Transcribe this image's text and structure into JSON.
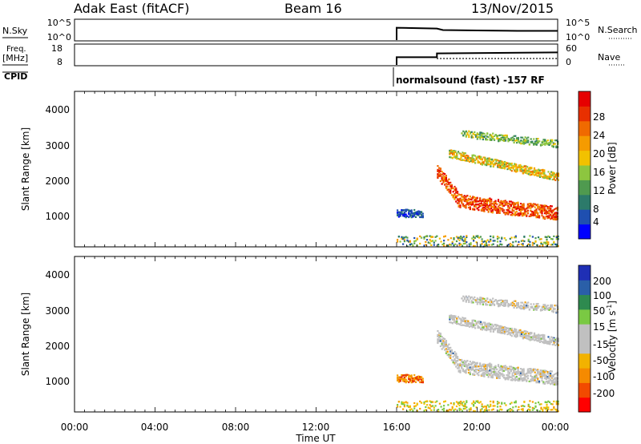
{
  "header": {
    "station": "Adak East (fitACF)",
    "beam": "Beam 16",
    "date": "13/Nov/2015"
  },
  "params": {
    "nsky_label": "N.Sky",
    "nsearch_label": "N.Search",
    "nsky_ticks": [
      "10^5",
      "10^0"
    ],
    "nsearch_ticks": [
      "10^5",
      "10^0"
    ],
    "freq_label_1": "Freq.",
    "freq_label_2": "[MHz]",
    "freq_ticks": [
      "18",
      "8"
    ],
    "nave_label": "Nave",
    "nave_ticks": [
      "60",
      "0"
    ],
    "cpid_label": "CPID",
    "cpid_text": "normalsound (fast) -157 RF"
  },
  "colors": {
    "power_scale": [
      "#0000ff",
      "#1f4fb0",
      "#2c7a6a",
      "#4f9a4f",
      "#8dc63f",
      "#f2c100",
      "#f59b00",
      "#f06a00",
      "#e83000",
      "#e60000"
    ],
    "velocity_scale": [
      "#ff0000",
      "#f24a00",
      "#f58a00",
      "#f2b200",
      "#c0c0c0",
      "#c0c0c0",
      "#7ac943",
      "#2e8a4f",
      "#2a5fa8",
      "#1f2fb5"
    ]
  },
  "chart_data": [
    {
      "type": "line",
      "panel": "N.Sky / N.Search",
      "ylabel": "N.Sky",
      "y2label": "N.Search",
      "ytick_labels": [
        "10^5",
        "10^0"
      ],
      "x_range": [
        "00:00",
        "24:00"
      ],
      "series": [
        {
          "name": "N.Sky",
          "x": [
            16.0,
            16.0,
            17.0,
            18.0,
            18.3,
            20.0,
            22.0,
            24.0
          ],
          "y": [
            0.0,
            3.2,
            3.1,
            3.0,
            2.6,
            2.5,
            2.4,
            2.4
          ]
        }
      ]
    },
    {
      "type": "line",
      "panel": "Freq. / Nave",
      "ylabel": "Freq. [MHz]",
      "y2label": "Nave",
      "ylim": [
        8,
        18
      ],
      "y2lim": [
        0,
        60
      ],
      "series": [
        {
          "name": "Freq.",
          "x": [
            16.0,
            16.0,
            18.0,
            18.0,
            24.0
          ],
          "y": [
            8,
            12,
            12,
            14,
            14.5
          ]
        },
        {
          "name": "Nave",
          "x": [
            18.0,
            24.0
          ],
          "y": [
            20,
            20
          ]
        }
      ]
    },
    {
      "type": "heatmap",
      "panel": "Power",
      "ylabel": "Slant Range [km]",
      "colorbar_label": "Power [dB]",
      "colorbar_ticks": [
        "28",
        "24",
        "20",
        "16",
        "12",
        "8",
        "4"
      ],
      "colorbar_range": [
        0,
        32
      ],
      "ytick_labels": [
        "4000",
        "3000",
        "2000",
        "1000"
      ],
      "ylim": [
        200,
        4500
      ],
      "x_range": [
        "00:00",
        "24:00"
      ],
      "data_start": "16:00",
      "features": [
        {
          "name": "near-range scatter",
          "x": [
            16.0,
            24.0
          ],
          "range_km": [
            200,
            600
          ],
          "power_db": 10
        },
        {
          "name": "early echo",
          "x": [
            16.0,
            17.3
          ],
          "range_km": [
            900,
            1400
          ],
          "power_db": 6
        },
        {
          "name": "main band",
          "x": [
            18.0,
            24.0
          ],
          "range_km": [
            1000,
            2400
          ],
          "power_db": 26
        },
        {
          "name": "upper band",
          "x": [
            18.5,
            24.0
          ],
          "range_km": [
            2000,
            3000
          ],
          "power_db": 18
        },
        {
          "name": "far band",
          "x": [
            19.0,
            24.0
          ],
          "range_km": [
            2800,
            3600
          ],
          "power_db": 12
        }
      ]
    },
    {
      "type": "heatmap",
      "panel": "Velocity",
      "ylabel": "Slant Range [km]",
      "xlabel": "Time UT",
      "colorbar_label": "Velocity [m s^-1]",
      "colorbar_ticks": [
        "200",
        "100",
        "50",
        "15",
        "-15",
        "-50",
        "-100",
        "-200"
      ],
      "colorbar_range": [
        -250,
        250
      ],
      "ytick_labels": [
        "4000",
        "3000",
        "2000",
        "1000"
      ],
      "ylim": [
        200,
        4500
      ],
      "xtick_labels": [
        "00:00",
        "04:00",
        "08:00",
        "12:00",
        "16:00",
        "20:00",
        "00:00"
      ],
      "x_range": [
        "00:00",
        "24:00"
      ],
      "data_start": "16:00"
    }
  ]
}
